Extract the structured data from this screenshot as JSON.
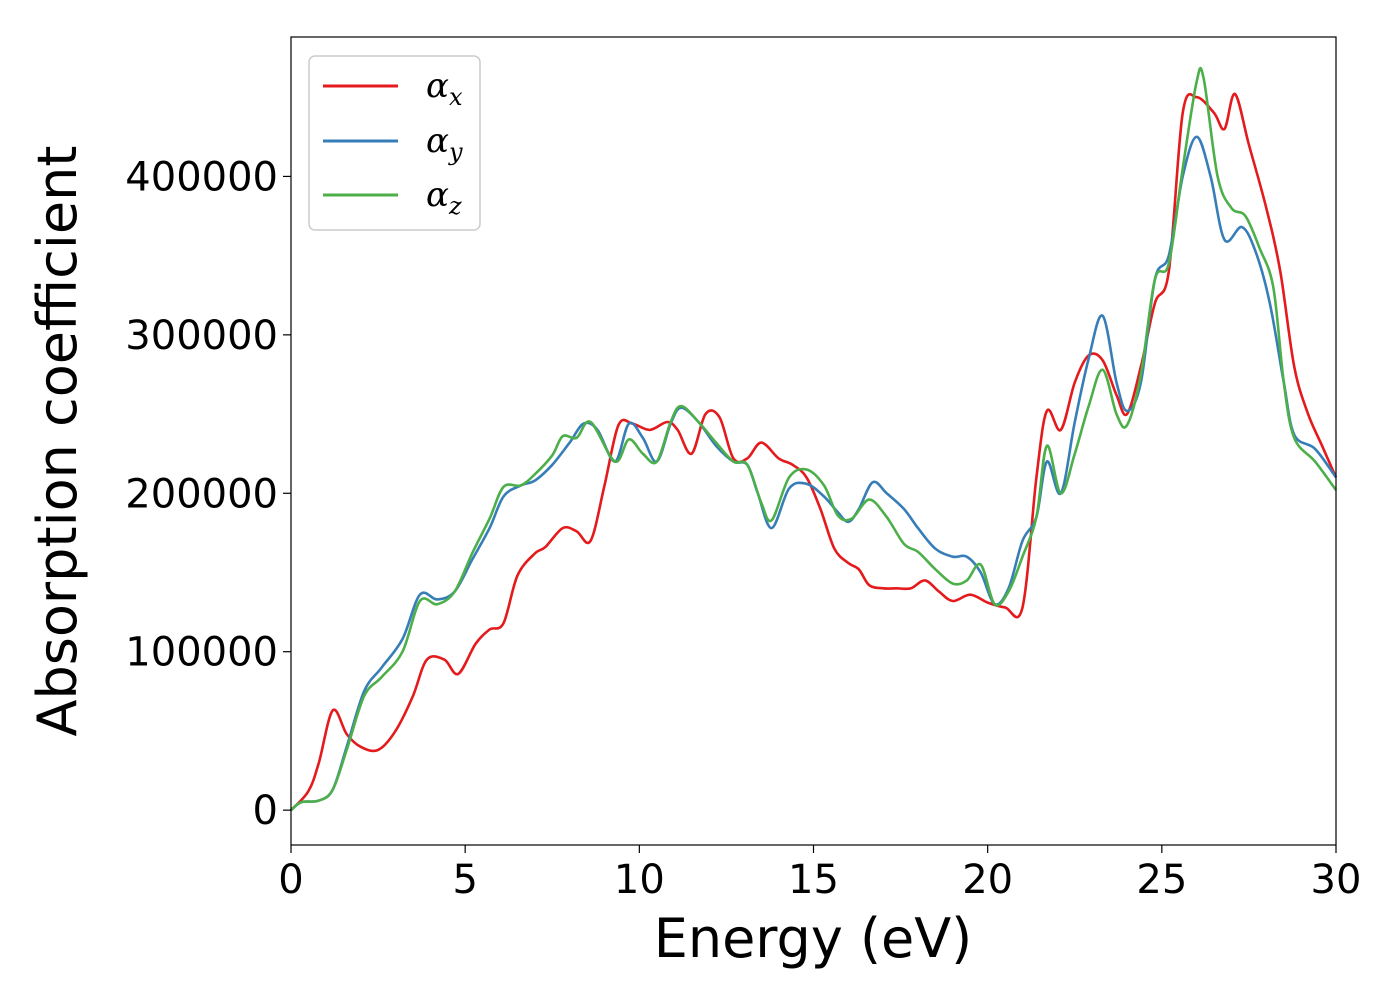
{
  "chart_data": {
    "type": "line",
    "xlabel": "Energy (eV)",
    "ylabel": "Absorption coefficient",
    "xlim": [
      0,
      30
    ],
    "ylim": [
      -22000,
      488000
    ],
    "xticks": [
      0,
      5,
      10,
      15,
      20,
      25,
      30
    ],
    "xtick_labels": [
      "0",
      "5",
      "10",
      "15",
      "20",
      "25",
      "30"
    ],
    "yticks": [
      0,
      100000,
      200000,
      300000,
      400000
    ],
    "ytick_labels": [
      "0",
      "100000",
      "200000",
      "300000",
      "400000"
    ],
    "grid": false,
    "legend_position": "top-left",
    "series": [
      {
        "name": "α",
        "subscript": "x",
        "color": "#e41a1c",
        "points": [
          [
            0,
            0
          ],
          [
            0.5,
            12000
          ],
          [
            0.8,
            30000
          ],
          [
            1.2,
            63000
          ],
          [
            1.6,
            48000
          ],
          [
            2,
            40000
          ],
          [
            2.5,
            38000
          ],
          [
            3,
            50000
          ],
          [
            3.5,
            72000
          ],
          [
            3.9,
            95000
          ],
          [
            4.4,
            95000
          ],
          [
            4.8,
            86000
          ],
          [
            5.3,
            105000
          ],
          [
            5.7,
            114000
          ],
          [
            6.1,
            118000
          ],
          [
            6.5,
            148000
          ],
          [
            7,
            162000
          ],
          [
            7.3,
            166000
          ],
          [
            7.8,
            178000
          ],
          [
            8.2,
            176000
          ],
          [
            8.6,
            170000
          ],
          [
            9,
            205000
          ],
          [
            9.4,
            243000
          ],
          [
            9.8,
            244000
          ],
          [
            10.3,
            240000
          ],
          [
            10.8,
            245000
          ],
          [
            11.1,
            240000
          ],
          [
            11.5,
            225000
          ],
          [
            11.9,
            250000
          ],
          [
            12.3,
            248000
          ],
          [
            12.7,
            222000
          ],
          [
            13.1,
            222000
          ],
          [
            13.5,
            232000
          ],
          [
            14,
            222000
          ],
          [
            14.4,
            218000
          ],
          [
            14.8,
            210000
          ],
          [
            15.2,
            190000
          ],
          [
            15.6,
            165000
          ],
          [
            16,
            156000
          ],
          [
            16.3,
            152000
          ],
          [
            16.6,
            142000
          ],
          [
            17,
            140000
          ],
          [
            17.4,
            140000
          ],
          [
            17.8,
            140000
          ],
          [
            18.2,
            145000
          ],
          [
            18.6,
            138000
          ],
          [
            19,
            132000
          ],
          [
            19.5,
            136000
          ],
          [
            20,
            131000
          ],
          [
            20.5,
            128000
          ],
          [
            21,
            128000
          ],
          [
            21.4,
            210000
          ],
          [
            21.7,
            252000
          ],
          [
            22.1,
            240000
          ],
          [
            22.5,
            270000
          ],
          [
            22.9,
            287000
          ],
          [
            23.3,
            284000
          ],
          [
            23.7,
            262000
          ],
          [
            24,
            250000
          ],
          [
            24.4,
            280000
          ],
          [
            24.8,
            320000
          ],
          [
            25.2,
            340000
          ],
          [
            25.6,
            440000
          ],
          [
            26,
            450000
          ],
          [
            26.5,
            440000
          ],
          [
            26.8,
            430000
          ],
          [
            27.1,
            452000
          ],
          [
            27.5,
            420000
          ],
          [
            28,
            380000
          ],
          [
            28.4,
            340000
          ],
          [
            28.8,
            280000
          ],
          [
            29.2,
            250000
          ],
          [
            29.6,
            230000
          ],
          [
            30,
            210000
          ]
        ]
      },
      {
        "name": "α",
        "subscript": "y",
        "color": "#377eb8",
        "points": [
          [
            0,
            0
          ],
          [
            0.3,
            5000
          ],
          [
            0.8,
            6000
          ],
          [
            1.2,
            13000
          ],
          [
            1.6,
            40000
          ],
          [
            2.1,
            75000
          ],
          [
            2.6,
            90000
          ],
          [
            3.2,
            108000
          ],
          [
            3.7,
            136000
          ],
          [
            4.2,
            133000
          ],
          [
            4.7,
            138000
          ],
          [
            5.2,
            158000
          ],
          [
            5.7,
            178000
          ],
          [
            6.1,
            198000
          ],
          [
            6.6,
            205000
          ],
          [
            7,
            208000
          ],
          [
            7.5,
            218000
          ],
          [
            8,
            232000
          ],
          [
            8.4,
            244000
          ],
          [
            8.8,
            240000
          ],
          [
            9.3,
            220000
          ],
          [
            9.7,
            244000
          ],
          [
            10.1,
            235000
          ],
          [
            10.5,
            220000
          ],
          [
            10.9,
            244000
          ],
          [
            11.2,
            254000
          ],
          [
            11.7,
            245000
          ],
          [
            12.2,
            230000
          ],
          [
            12.7,
            220000
          ],
          [
            13.1,
            218000
          ],
          [
            13.4,
            200000
          ],
          [
            13.8,
            178000
          ],
          [
            14.3,
            203000
          ],
          [
            14.8,
            206000
          ],
          [
            15.3,
            198000
          ],
          [
            15.7,
            188000
          ],
          [
            16,
            182000
          ],
          [
            16.3,
            190000
          ],
          [
            16.7,
            207000
          ],
          [
            17.1,
            200000
          ],
          [
            17.6,
            190000
          ],
          [
            18,
            178000
          ],
          [
            18.5,
            165000
          ],
          [
            19,
            160000
          ],
          [
            19.4,
            160000
          ],
          [
            19.8,
            150000
          ],
          [
            20.2,
            130000
          ],
          [
            20.6,
            140000
          ],
          [
            21,
            170000
          ],
          [
            21.4,
            185000
          ],
          [
            21.7,
            220000
          ],
          [
            22.1,
            200000
          ],
          [
            22.5,
            245000
          ],
          [
            22.9,
            285000
          ],
          [
            23.3,
            312000
          ],
          [
            23.7,
            270000
          ],
          [
            24,
            252000
          ],
          [
            24.4,
            270000
          ],
          [
            24.8,
            335000
          ],
          [
            25.2,
            350000
          ],
          [
            25.6,
            400000
          ],
          [
            26,
            425000
          ],
          [
            26.4,
            400000
          ],
          [
            26.8,
            360000
          ],
          [
            27.3,
            368000
          ],
          [
            27.7,
            352000
          ],
          [
            28.1,
            320000
          ],
          [
            28.5,
            270000
          ],
          [
            28.8,
            237000
          ],
          [
            29.4,
            228000
          ],
          [
            30,
            210000
          ]
        ]
      },
      {
        "name": "α",
        "subscript": "z",
        "color": "#4daf4a",
        "points": [
          [
            0,
            0
          ],
          [
            0.3,
            5000
          ],
          [
            0.8,
            6000
          ],
          [
            1.2,
            13000
          ],
          [
            1.6,
            38000
          ],
          [
            2.1,
            72000
          ],
          [
            2.6,
            84000
          ],
          [
            3.2,
            100000
          ],
          [
            3.7,
            132000
          ],
          [
            4.2,
            130000
          ],
          [
            4.7,
            138000
          ],
          [
            5.2,
            162000
          ],
          [
            5.7,
            184000
          ],
          [
            6.1,
            204000
          ],
          [
            6.6,
            205000
          ],
          [
            7,
            212000
          ],
          [
            7.5,
            224000
          ],
          [
            7.8,
            236000
          ],
          [
            8.2,
            235000
          ],
          [
            8.6,
            245000
          ],
          [
            9.3,
            220000
          ],
          [
            9.7,
            234000
          ],
          [
            10.1,
            225000
          ],
          [
            10.5,
            220000
          ],
          [
            10.9,
            245000
          ],
          [
            11.2,
            255000
          ],
          [
            11.7,
            245000
          ],
          [
            12.2,
            232000
          ],
          [
            12.7,
            220000
          ],
          [
            13.1,
            218000
          ],
          [
            13.5,
            194000
          ],
          [
            13.8,
            183000
          ],
          [
            14.3,
            210000
          ],
          [
            14.8,
            215000
          ],
          [
            15.3,
            205000
          ],
          [
            15.7,
            186000
          ],
          [
            16.1,
            184000
          ],
          [
            16.6,
            196000
          ],
          [
            17.1,
            185000
          ],
          [
            17.6,
            168000
          ],
          [
            18,
            163000
          ],
          [
            18.5,
            152000
          ],
          [
            19,
            143000
          ],
          [
            19.4,
            145000
          ],
          [
            19.8,
            155000
          ],
          [
            20.2,
            130000
          ],
          [
            20.6,
            138000
          ],
          [
            21,
            160000
          ],
          [
            21.4,
            185000
          ],
          [
            21.7,
            230000
          ],
          [
            22.1,
            200000
          ],
          [
            22.5,
            225000
          ],
          [
            22.9,
            255000
          ],
          [
            23.3,
            278000
          ],
          [
            23.7,
            250000
          ],
          [
            24,
            243000
          ],
          [
            24.4,
            275000
          ],
          [
            24.8,
            335000
          ],
          [
            25.2,
            345000
          ],
          [
            25.6,
            405000
          ],
          [
            26,
            460000
          ],
          [
            26.2,
            462000
          ],
          [
            26.6,
            400000
          ],
          [
            27,
            380000
          ],
          [
            27.4,
            375000
          ],
          [
            27.8,
            355000
          ],
          [
            28.2,
            330000
          ],
          [
            28.5,
            270000
          ],
          [
            28.8,
            235000
          ],
          [
            29.4,
            220000
          ],
          [
            30,
            202000
          ]
        ]
      }
    ]
  }
}
